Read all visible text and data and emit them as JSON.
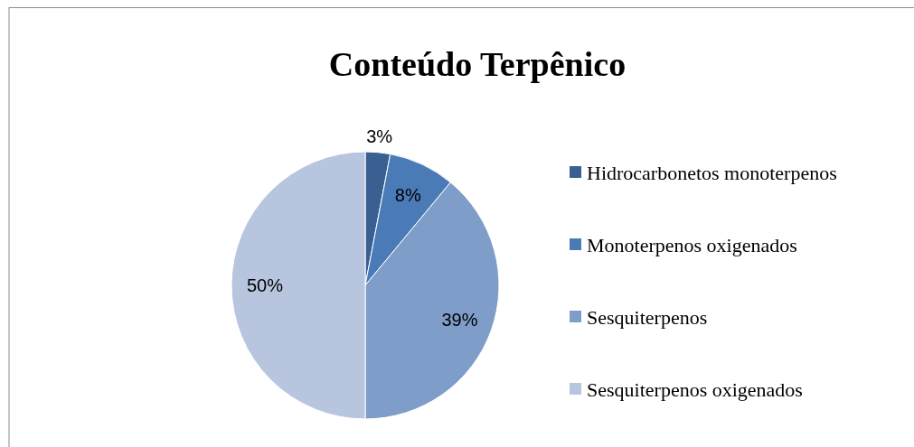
{
  "chart_data": {
    "type": "pie",
    "title": "Conteúdo Terpênico",
    "categories": [
      "Hidrocarbonetos monoterpenos",
      "Monoterpenos oxigenados",
      "Sesquiterpenos",
      "Sesquiterpenos oxigenados"
    ],
    "values": [
      3,
      8,
      39,
      50
    ],
    "colors": [
      "#3a5f91",
      "#4a7bb7",
      "#7f9dc9",
      "#b8c5df"
    ],
    "value_labels": [
      "3%",
      "8%",
      "39%",
      "50%"
    ],
    "legend": "right"
  }
}
